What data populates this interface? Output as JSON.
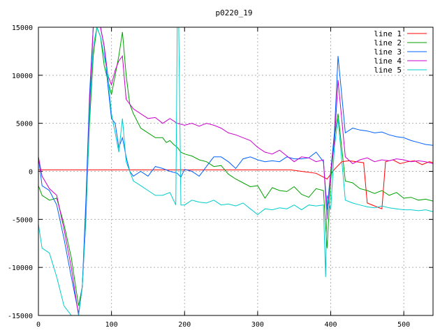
{
  "chart_data": {
    "type": "line",
    "title": "p0220_19",
    "xlabel": "",
    "ylabel": "",
    "xlim": [
      0,
      540
    ],
    "ylim": [
      -15000,
      15000
    ],
    "x_ticks": [
      0,
      100,
      200,
      300,
      400,
      500
    ],
    "y_ticks": [
      -15000,
      -10000,
      -5000,
      0,
      5000,
      10000,
      15000
    ],
    "grid": true,
    "legend_position": "top-right",
    "series": [
      {
        "name": "line 1",
        "color": "#ff0000",
        "x": [
          0,
          100,
          200,
          300,
          345,
          360,
          380,
          395,
          405,
          410,
          415,
          425,
          435,
          445,
          450,
          460,
          470,
          475,
          485,
          495,
          505,
          515,
          525,
          535,
          540
        ],
        "y": [
          150,
          150,
          150,
          150,
          150,
          0,
          -200,
          -800,
          200,
          600,
          1000,
          1100,
          1000,
          900,
          -3300,
          -3600,
          -3900,
          1000,
          1200,
          800,
          1000,
          1100,
          700,
          1000,
          900
        ]
      },
      {
        "name": "line 2",
        "color": "#00a000",
        "x": [
          0,
          5,
          15,
          25,
          35,
          45,
          55,
          60,
          65,
          70,
          75,
          80,
          85,
          90,
          95,
          100,
          105,
          110,
          115,
          120,
          125,
          130,
          140,
          150,
          160,
          170,
          175,
          180,
          185,
          190,
          195,
          200,
          210,
          220,
          230,
          240,
          250,
          260,
          270,
          280,
          290,
          300,
          310,
          320,
          330,
          340,
          350,
          360,
          370,
          380,
          390,
          395,
          400,
          405,
          410,
          420,
          430,
          440,
          450,
          460,
          470,
          480,
          490,
          500,
          510,
          520,
          530,
          540
        ],
        "y": [
          -1500,
          -2500,
          -3000,
          -2800,
          -5500,
          -9000,
          -14000,
          -12000,
          -4000,
          5000,
          12000,
          15000,
          14000,
          11000,
          9500,
          8000,
          10000,
          12000,
          14500,
          10000,
          7000,
          6000,
          4500,
          4000,
          3500,
          3500,
          3000,
          3200,
          2800,
          2500,
          2000,
          1800,
          1600,
          1200,
          1000,
          500,
          600,
          -300,
          -800,
          -1200,
          -1600,
          -1500,
          -2800,
          -1700,
          -2000,
          -2100,
          -1600,
          -2400,
          -2700,
          -1800,
          -2000,
          -8000,
          -1000,
          3500,
          6000,
          -1000,
          -1200,
          -1800,
          -2000,
          -2300,
          -2000,
          -2500,
          -2200,
          -2800,
          -2700,
          -3000,
          -2900,
          -3100
        ]
      },
      {
        "name": "line 3",
        "color": "#0060ff",
        "x": [
          0,
          5,
          15,
          25,
          35,
          45,
          55,
          60,
          65,
          70,
          75,
          80,
          85,
          90,
          95,
          100,
          105,
          110,
          115,
          120,
          125,
          130,
          140,
          150,
          160,
          170,
          180,
          190,
          195,
          200,
          210,
          220,
          230,
          240,
          250,
          260,
          270,
          280,
          290,
          300,
          310,
          320,
          330,
          340,
          350,
          360,
          370,
          380,
          390,
          395,
          400,
          405,
          410,
          420,
          430,
          440,
          450,
          460,
          470,
          480,
          490,
          500,
          510,
          520,
          530,
          540
        ],
        "y": [
          1500,
          -1500,
          -2000,
          -3500,
          -7000,
          -11000,
          -14800,
          -12000,
          -3000,
          8000,
          15000,
          15000,
          15000,
          13000,
          9000,
          5500,
          5000,
          2500,
          3500,
          1500,
          0,
          -500,
          0,
          -500,
          500,
          300,
          0,
          -200,
          -600,
          200,
          0,
          -500,
          500,
          1500,
          1500,
          1000,
          300,
          1300,
          1500,
          1200,
          1000,
          1100,
          1000,
          1500,
          1300,
          1300,
          1400,
          2000,
          1000,
          -4000,
          0,
          4000,
          12000,
          4000,
          4500,
          4300,
          4200,
          4000,
          4100,
          3800,
          3600,
          3500,
          3200,
          3000,
          2800,
          2700
        ]
      },
      {
        "name": "line 4",
        "color": "#cc00cc",
        "x": [
          0,
          5,
          15,
          25,
          35,
          45,
          55,
          60,
          65,
          70,
          75,
          80,
          85,
          90,
          95,
          100,
          105,
          110,
          115,
          120,
          130,
          140,
          150,
          160,
          170,
          180,
          190,
          200,
          210,
          220,
          230,
          240,
          250,
          260,
          270,
          280,
          290,
          300,
          310,
          320,
          330,
          340,
          350,
          360,
          370,
          380,
          390,
          395,
          400,
          405,
          410,
          420,
          430,
          440,
          450,
          460,
          470,
          480,
          490,
          500,
          510,
          520,
          530,
          540
        ],
        "y": [
          1500,
          -500,
          -1800,
          -2500,
          -6000,
          -10000,
          -15000,
          -12000,
          -5000,
          7000,
          15000,
          15000,
          15000,
          13000,
          10000,
          9000,
          10500,
          11500,
          12000,
          7500,
          6500,
          6000,
          5500,
          5600,
          5000,
          5500,
          5000,
          4800,
          5000,
          4700,
          5000,
          4800,
          4500,
          4000,
          3800,
          3500,
          3200,
          2500,
          2000,
          1800,
          2200,
          1600,
          1000,
          1500,
          1400,
          1000,
          1200,
          -5000,
          0,
          3000,
          9500,
          1500,
          800,
          1200,
          1400,
          1000,
          1200,
          1100,
          1300,
          1200,
          1000,
          1100,
          1000,
          800
        ]
      },
      {
        "name": "line 5",
        "color": "#00cccc",
        "x": [
          0,
          5,
          15,
          25,
          35,
          45,
          55,
          60,
          65,
          70,
          75,
          80,
          85,
          90,
          95,
          100,
          105,
          110,
          115,
          120,
          130,
          140,
          150,
          160,
          170,
          180,
          188,
          190,
          192,
          195,
          200,
          210,
          220,
          230,
          240,
          250,
          260,
          270,
          280,
          290,
          300,
          310,
          320,
          330,
          340,
          350,
          360,
          370,
          380,
          390,
          393,
          395,
          400,
          405,
          410,
          420,
          430,
          440,
          450,
          460,
          470,
          480,
          490,
          500,
          510,
          520,
          530,
          540
        ],
        "y": [
          -5500,
          -8000,
          -8500,
          -11000,
          -14000,
          -15000,
          -15000,
          -12000,
          -5000,
          6000,
          13000,
          15000,
          14000,
          12000,
          10000,
          6000,
          4000,
          2000,
          5500,
          1000,
          -1000,
          -1500,
          -2000,
          -2500,
          -2500,
          -2200,
          -3500,
          15000,
          15000,
          -3500,
          -3500,
          -3000,
          -3200,
          -3300,
          -3000,
          -3500,
          -3400,
          -3600,
          -3300,
          -3900,
          -4500,
          -3900,
          -4000,
          -3800,
          -3900,
          -3500,
          -4000,
          -3500,
          -3600,
          -3500,
          -11000,
          -2500,
          -4000,
          2500,
          5500,
          -3000,
          -3300,
          -3500,
          -3700,
          -3800,
          -3600,
          -3800,
          -3900,
          -4000,
          -4000,
          -4100,
          -4000,
          -4200
        ]
      }
    ]
  }
}
